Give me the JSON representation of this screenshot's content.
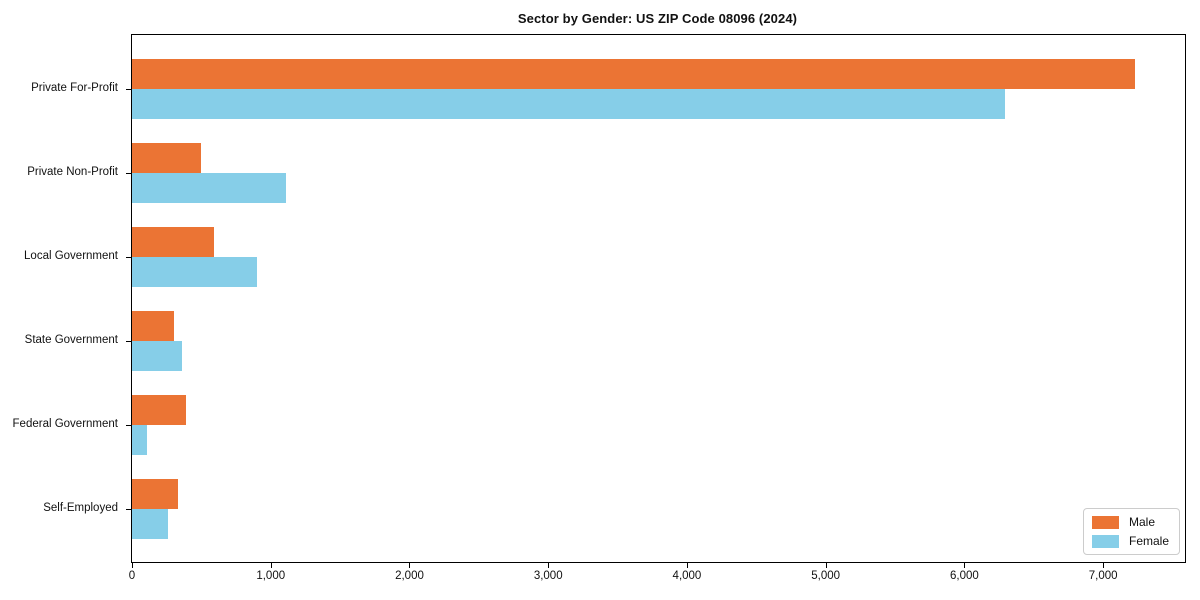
{
  "chart_data": {
    "type": "bar",
    "orientation": "horizontal",
    "title": "Sector by Gender: US ZIP Code 08096 (2024)",
    "categories": [
      "Private For-Profit",
      "Private Non-Profit",
      "Local Government",
      "State Government",
      "Federal Government",
      "Self-Employed"
    ],
    "series": [
      {
        "name": "Male",
        "color": "#EB7434",
        "values": [
          7230,
          500,
          590,
          300,
          390,
          330
        ]
      },
      {
        "name": "Female",
        "color": "#86CEE8",
        "values": [
          6290,
          1110,
          900,
          360,
          110,
          260
        ]
      }
    ],
    "xlabel": "",
    "ylabel": "",
    "xlim": [
      0,
      7590
    ],
    "xticks": [
      0,
      1000,
      2000,
      3000,
      4000,
      5000,
      6000,
      7000
    ],
    "xtick_labels": [
      "0",
      "1,000",
      "2,000",
      "3,000",
      "4,000",
      "5,000",
      "6,000",
      "7,000"
    ],
    "legend_position": "lower right",
    "grid": false,
    "axis_color": "#000000",
    "background_color": "#ffffff"
  }
}
